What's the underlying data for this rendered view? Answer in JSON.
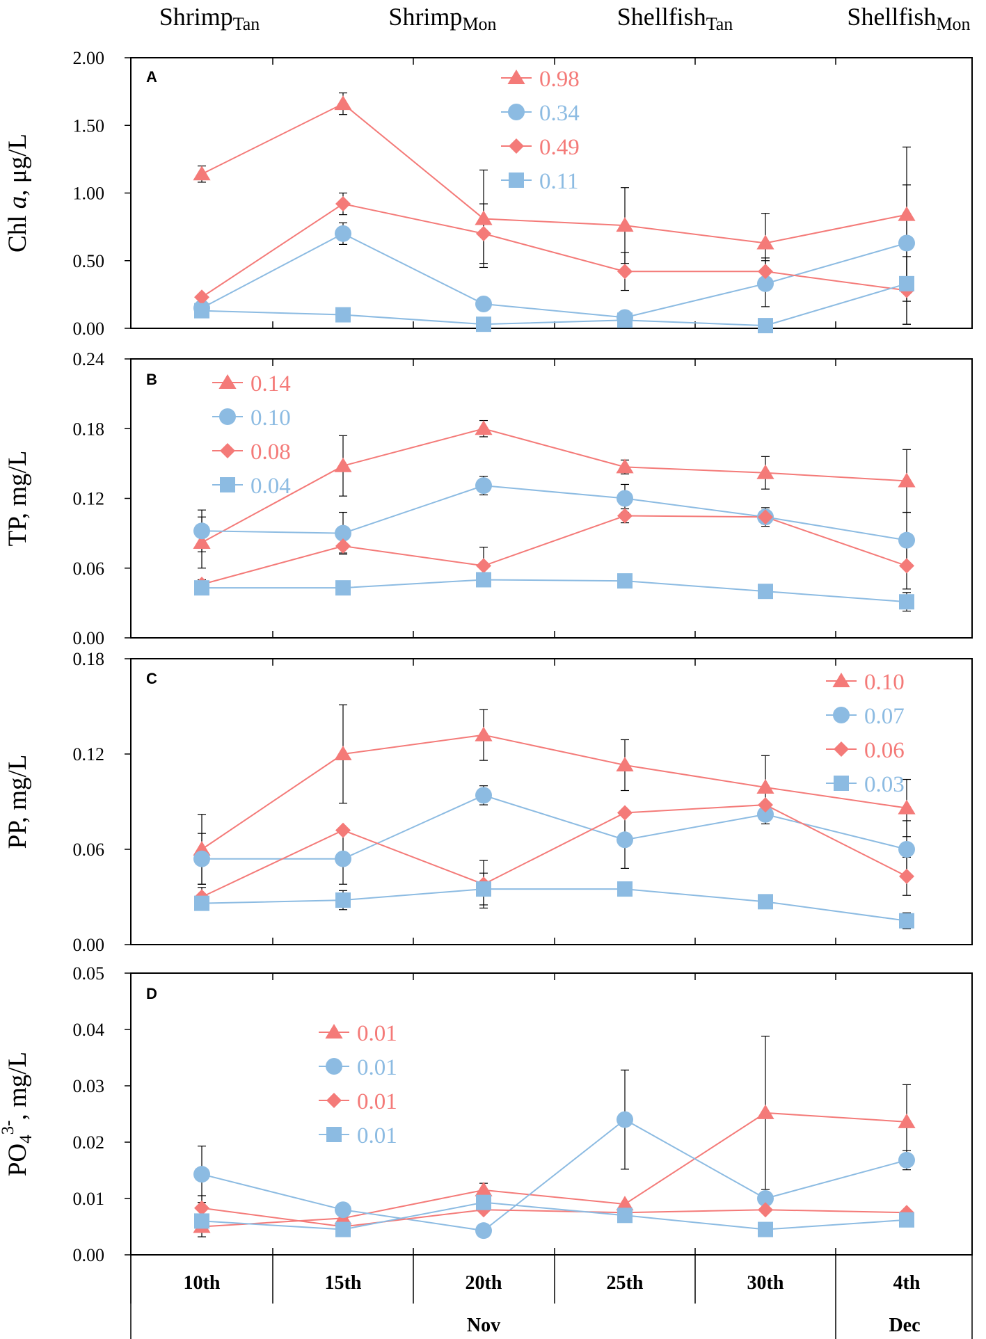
{
  "colors": {
    "red": "#F47A78",
    "blue": "#8CBBE2",
    "axis": "#000000",
    "err": "#000000"
  },
  "groups": [
    {
      "main": "Shrimp",
      "sub": "Tan"
    },
    {
      "main": "Shrimp",
      "sub": "Mon"
    },
    {
      "main": "Shellfish",
      "sub": "Tan"
    },
    {
      "main": "Shellfish",
      "sub": "Mon"
    }
  ],
  "x_axis": {
    "ticks": [
      "10th",
      "15th",
      "20th",
      "25th",
      "30th",
      "4th"
    ],
    "months": [
      {
        "label": "Nov"
      },
      {
        "label": "Dec"
      }
    ]
  },
  "chart_data": [
    {
      "type": "line",
      "panel": "A",
      "ylabel": {
        "pre": "Chl ",
        "italic": "a",
        "post": ", μg/L",
        "sup": ""
      },
      "ylim": [
        0,
        2
      ],
      "yticks": [
        "0.00",
        "0.50",
        "1.00",
        "1.50",
        "2.00"
      ],
      "ytick_values": [
        0,
        0.5,
        1,
        1.5,
        2
      ],
      "legend_position": "top-center",
      "categories": [
        "10th",
        "15th",
        "20th",
        "25th",
        "30th",
        "4th"
      ],
      "series": [
        {
          "name": "0.98",
          "marker": "triangle",
          "color": "red",
          "values": [
            1.14,
            1.66,
            0.81,
            0.76,
            0.63,
            0.84
          ],
          "errors": [
            0.06,
            0.08,
            0.36,
            0.28,
            0.22,
            0.5
          ]
        },
        {
          "name": "0.34",
          "marker": "circle",
          "color": "blue",
          "values": [
            0.15,
            0.7,
            0.18,
            0.08,
            0.33,
            0.63
          ],
          "errors": [
            0.02,
            0.08,
            0.05,
            0.0,
            0.17,
            0.43
          ]
        },
        {
          "name": "0.49",
          "marker": "diamond",
          "color": "red",
          "values": [
            0.23,
            0.92,
            0.7,
            0.42,
            0.42,
            0.28
          ],
          "errors": [
            0.0,
            0.08,
            0.22,
            0.14,
            0.1,
            0.25
          ]
        },
        {
          "name": "0.11",
          "marker": "square",
          "color": "blue",
          "values": [
            0.13,
            0.1,
            0.03,
            0.06,
            0.02,
            0.33
          ],
          "errors": [
            0.0,
            0.0,
            0.0,
            0.0,
            0.0,
            0.3
          ]
        }
      ]
    },
    {
      "type": "line",
      "panel": "B",
      "ylabel": {
        "pre": "TP, mg/L",
        "italic": "",
        "post": "",
        "sup": ""
      },
      "ylim": [
        0,
        0.24
      ],
      "yticks": [
        "0.00",
        "0.06",
        "0.12",
        "0.18",
        "0.24"
      ],
      "ytick_values": [
        0,
        0.06,
        0.12,
        0.18,
        0.24
      ],
      "legend_position": "top-left",
      "categories": [
        "10th",
        "15th",
        "20th",
        "25th",
        "30th",
        "4th"
      ],
      "series": [
        {
          "name": "0.14",
          "marker": "triangle",
          "color": "red",
          "values": [
            0.082,
            0.148,
            0.18,
            0.147,
            0.142,
            0.135
          ],
          "errors": [
            0.022,
            0.026,
            0.007,
            0.006,
            0.014,
            0.027
          ]
        },
        {
          "name": "0.10",
          "marker": "circle",
          "color": "blue",
          "values": [
            0.092,
            0.09,
            0.131,
            0.12,
            0.104,
            0.084
          ],
          "errors": [
            0.018,
            0.018,
            0.008,
            0.012,
            0.008,
            0.024
          ]
        },
        {
          "name": "0.08",
          "marker": "diamond",
          "color": "red",
          "values": [
            0.046,
            0.079,
            0.062,
            0.105,
            0.104,
            0.062
          ],
          "errors": [
            0.004,
            0.006,
            0.016,
            0.006,
            0.006,
            0.02
          ]
        },
        {
          "name": "0.04",
          "marker": "square",
          "color": "blue",
          "values": [
            0.043,
            0.043,
            0.05,
            0.049,
            0.04,
            0.031
          ],
          "errors": [
            0.0,
            0.0,
            0.0,
            0.0,
            0.0,
            0.008
          ]
        }
      ]
    },
    {
      "type": "line",
      "panel": "C",
      "ylabel": {
        "pre": "PP, mg/L",
        "italic": "",
        "post": "",
        "sup": ""
      },
      "ylim": [
        0,
        0.18
      ],
      "yticks": [
        "0.00",
        "0.06",
        "0.12",
        "0.18"
      ],
      "ytick_values": [
        0,
        0.06,
        0.12,
        0.18
      ],
      "legend_position": "top-right",
      "categories": [
        "10th",
        "15th",
        "20th",
        "25th",
        "30th",
        "4th"
      ],
      "series": [
        {
          "name": "0.10",
          "marker": "triangle",
          "color": "red",
          "values": [
            0.06,
            0.12,
            0.132,
            0.113,
            0.099,
            0.086
          ],
          "errors": [
            0.022,
            0.031,
            0.016,
            0.016,
            0.02,
            0.018
          ]
        },
        {
          "name": "0.07",
          "marker": "circle",
          "color": "blue",
          "values": [
            0.054,
            0.054,
            0.094,
            0.066,
            0.082,
            0.06
          ],
          "errors": [
            0.016,
            0.016,
            0.006,
            0.018,
            0.006,
            0.018
          ]
        },
        {
          "name": "0.06",
          "marker": "diamond",
          "color": "red",
          "values": [
            0.03,
            0.072,
            0.038,
            0.083,
            0.088,
            0.043
          ],
          "errors": [
            0.006,
            0.0,
            0.015,
            0.0,
            0.0,
            0.012
          ]
        },
        {
          "name": "0.03",
          "marker": "square",
          "color": "blue",
          "values": [
            0.026,
            0.028,
            0.035,
            0.035,
            0.027,
            0.015
          ],
          "errors": [
            0.004,
            0.006,
            0.01,
            0.0,
            0.0,
            0.005
          ]
        }
      ]
    },
    {
      "type": "line",
      "panel": "D",
      "ylabel": {
        "pre": "PO",
        "italic": "",
        "post": ", mg/L",
        "sub": "4",
        "sup": "3-"
      },
      "ylim": [
        0,
        0.05
      ],
      "yticks": [
        "0.00",
        "0.01",
        "0.02",
        "0.03",
        "0.04",
        "0.05"
      ],
      "ytick_values": [
        0,
        0.01,
        0.02,
        0.03,
        0.04,
        0.05
      ],
      "legend_position": "top-left",
      "categories": [
        "10th",
        "15th",
        "20th",
        "25th",
        "30th",
        "4th"
      ],
      "series": [
        {
          "name": "0.01",
          "marker": "triangle",
          "color": "red",
          "values": [
            0.005,
            0.0065,
            0.0115,
            0.009,
            0.0252,
            0.0236
          ],
          "errors": [
            0.0,
            0.0,
            0.0012,
            0.0,
            0.0136,
            0.0066
          ]
        },
        {
          "name": "0.01",
          "marker": "circle",
          "color": "blue",
          "values": [
            0.0143,
            0.008,
            0.0043,
            0.024,
            0.01,
            0.0168
          ],
          "errors": [
            0.005,
            0.0,
            0.0,
            0.0088,
            0.0,
            0.0017
          ]
        },
        {
          "name": "0.01",
          "marker": "diamond",
          "color": "red",
          "values": [
            0.0083,
            0.005,
            0.008,
            0.0075,
            0.008,
            0.0075
          ],
          "errors": [
            0.0022,
            0.0,
            0.0,
            0.0,
            0.0,
            0.0
          ]
        },
        {
          "name": "0.01",
          "marker": "square",
          "color": "blue",
          "values": [
            0.006,
            0.0045,
            0.0093,
            0.007,
            0.0045,
            0.0062
          ],
          "errors": [
            0.0028,
            0.0,
            0.0,
            0.0,
            0.0,
            0.0
          ]
        }
      ]
    }
  ]
}
